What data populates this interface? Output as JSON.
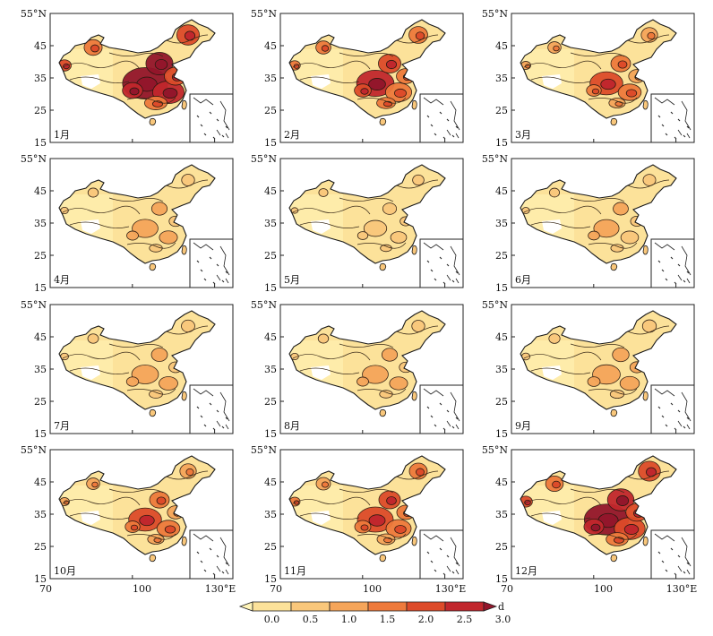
{
  "figure": {
    "lat_ticks": [
      "55°N",
      "45",
      "35",
      "25",
      "15"
    ],
    "lon_ticks": [
      "70",
      "100",
      "130°E"
    ],
    "unit": "d",
    "background": "#ffffff"
  },
  "months": [
    "1月",
    "2月",
    "3月",
    "4月",
    "5月",
    "6月",
    "7月",
    "8月",
    "9月",
    "10月",
    "11月",
    "12月"
  ],
  "intensity": [
    0.95,
    0.7,
    0.55,
    0.32,
    0.22,
    0.3,
    0.35,
    0.32,
    0.38,
    0.55,
    0.65,
    0.92
  ],
  "legend": {
    "ticks": [
      "0.0",
      "0.5",
      "1.0",
      "1.5",
      "2.0",
      "2.5",
      "3.0"
    ],
    "unit": "d",
    "colors": [
      "#fff4b8",
      "#fce29a",
      "#f9c77b",
      "#f5a55a",
      "#ee7a3c",
      "#dd4b2a",
      "#c1272d",
      "#93162b"
    ]
  }
}
